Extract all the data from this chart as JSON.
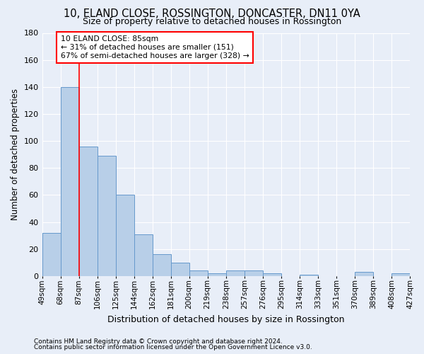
{
  "title1": "10, ELAND CLOSE, ROSSINGTON, DONCASTER, DN11 0YA",
  "title2": "Size of property relative to detached houses in Rossington",
  "xlabel": "Distribution of detached houses by size in Rossington",
  "ylabel": "Number of detached properties",
  "footer1": "Contains HM Land Registry data © Crown copyright and database right 2024.",
  "footer2": "Contains public sector information licensed under the Open Government Licence v3.0.",
  "annotation_title": "10 ELAND CLOSE: 85sqm",
  "annotation_line2": "← 31% of detached houses are smaller (151)",
  "annotation_line3": "67% of semi-detached houses are larger (328) →",
  "bar_values": [
    32,
    140,
    96,
    89,
    60,
    31,
    16,
    10,
    4,
    2,
    4,
    4,
    2,
    0,
    1,
    0,
    0,
    3,
    0,
    2
  ],
  "tick_labels": [
    "49sqm",
    "68sqm",
    "87sqm",
    "106sqm",
    "125sqm",
    "144sqm",
    "162sqm",
    "181sqm",
    "200sqm",
    "219sqm",
    "238sqm",
    "257sqm",
    "276sqm",
    "295sqm",
    "314sqm",
    "333sqm",
    "351sqm",
    "370sqm",
    "389sqm",
    "408sqm",
    "427sqm"
  ],
  "bar_color": "#b8cfe8",
  "bar_edge_color": "#6699cc",
  "vline_x": 2,
  "vline_color": "red",
  "ylim": [
    0,
    180
  ],
  "yticks": [
    0,
    20,
    40,
    60,
    80,
    100,
    120,
    140,
    160,
    180
  ],
  "background_color": "#e8eef8",
  "grid_color": "#ffffff",
  "annotation_box_facecolor": "#ffffff",
  "annotation_box_edgecolor": "red",
  "title1_fontsize": 10.5,
  "title2_fontsize": 9,
  "ylabel_fontsize": 8.5,
  "xlabel_fontsize": 9,
  "tick_fontsize": 7.5,
  "footer_fontsize": 6.5
}
